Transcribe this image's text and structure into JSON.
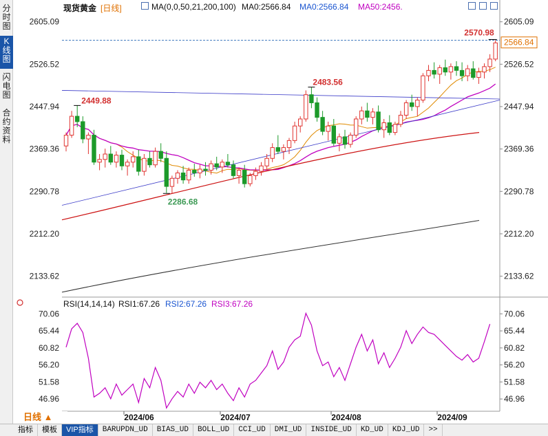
{
  "sidebar": {
    "tabs": [
      {
        "label": "分时图",
        "active": false
      },
      {
        "label": "K线图",
        "active": true
      },
      {
        "label": "闪电图",
        "active": false
      },
      {
        "label": "合约资料",
        "active": false
      }
    ]
  },
  "header": {
    "instrument": "现货黄金",
    "period_tag": "[日线]",
    "ma_params": "MA(0,0,50,21,200,100)",
    "ma0_a": "MA0:2566.84",
    "ma0_b": "MA0:2566.84",
    "ma50": "MA50:2456."
  },
  "price_panel": {
    "y_ticks": [
      "2605.09",
      "2526.52",
      "2447.94",
      "2369.36",
      "2290.78",
      "2212.20",
      "2133.62"
    ],
    "current_price": "2566.84",
    "annotations": {
      "high": "2570.98",
      "peak_july": "2483.56",
      "peak_may": "2449.88",
      "low_june": "2286.68"
    }
  },
  "rsi_panel": {
    "title": "RSI(14,14,14)",
    "rsi1": "RSI1:67.26",
    "rsi2": "RSI2:67.26",
    "rsi3": "RSI3:67.26",
    "y_ticks": [
      "70.06",
      "65.44",
      "60.82",
      "56.20",
      "51.58",
      "46.96"
    ]
  },
  "x_axis": {
    "labels": [
      "2024/06",
      "2024/07",
      "2024/08",
      "2024/09"
    ]
  },
  "period_button": {
    "label": "日线 ▲"
  },
  "bottom_tabs": [
    {
      "label": "指标",
      "active": false,
      "cn": true
    },
    {
      "label": "模板",
      "active": false,
      "cn": true
    },
    {
      "label": "VIP指标",
      "active": true,
      "cn": true
    },
    {
      "label": "BARUPDN_UD",
      "active": false
    },
    {
      "label": "BIAS_UD",
      "active": false
    },
    {
      "label": "BOLL_UD",
      "active": false
    },
    {
      "label": "CCI_UD",
      "active": false
    },
    {
      "label": "DMI_UD",
      "active": false
    },
    {
      "label": "INSIDE_UD",
      "active": false
    },
    {
      "label": "KD_UD",
      "active": false
    },
    {
      "label": "KDJ_UD",
      "active": false
    },
    {
      "label": ">>",
      "active": false
    }
  ],
  "colors": {
    "up": "#e0332f",
    "down": "#1c9a2a",
    "ma_fast": "#e08a00",
    "ma_mid": "#c000c0",
    "ma_slow": "#cc1010",
    "ma_long": "#303030",
    "trend_line": "#3a3ac8",
    "rsi": "#c000c0"
  },
  "chart_data": {
    "type": "candlestick",
    "price_range": [
      2100,
      2620
    ],
    "rsi_range": [
      44,
      72
    ],
    "candles": [
      [
        2375,
        2400,
        2365,
        2395
      ],
      [
        2395,
        2440,
        2390,
        2430
      ],
      [
        2430,
        2450,
        2410,
        2420
      ],
      [
        2420,
        2430,
        2380,
        2388
      ],
      [
        2388,
        2400,
        2360,
        2395
      ],
      [
        2395,
        2405,
        2340,
        2345
      ],
      [
        2345,
        2360,
        2330,
        2350
      ],
      [
        2350,
        2370,
        2335,
        2360
      ],
      [
        2360,
        2375,
        2340,
        2345
      ],
      [
        2345,
        2365,
        2335,
        2358
      ],
      [
        2358,
        2368,
        2330,
        2338
      ],
      [
        2338,
        2350,
        2320,
        2345
      ],
      [
        2345,
        2365,
        2335,
        2355
      ],
      [
        2355,
        2368,
        2320,
        2328
      ],
      [
        2328,
        2360,
        2320,
        2352
      ],
      [
        2352,
        2365,
        2335,
        2340
      ],
      [
        2340,
        2372,
        2335,
        2365
      ],
      [
        2365,
        2380,
        2345,
        2352
      ],
      [
        2352,
        2365,
        2288,
        2300
      ],
      [
        2300,
        2320,
        2287,
        2315
      ],
      [
        2315,
        2330,
        2305,
        2325
      ],
      [
        2325,
        2338,
        2305,
        2312
      ],
      [
        2312,
        2335,
        2305,
        2330
      ],
      [
        2330,
        2342,
        2318,
        2325
      ],
      [
        2325,
        2340,
        2315,
        2332
      ],
      [
        2332,
        2345,
        2320,
        2330
      ],
      [
        2330,
        2348,
        2322,
        2342
      ],
      [
        2342,
        2355,
        2330,
        2336
      ],
      [
        2336,
        2350,
        2325,
        2345
      ],
      [
        2345,
        2360,
        2335,
        2340
      ],
      [
        2340,
        2348,
        2315,
        2320
      ],
      [
        2320,
        2335,
        2305,
        2330
      ],
      [
        2330,
        2340,
        2298,
        2305
      ],
      [
        2305,
        2325,
        2300,
        2320
      ],
      [
        2320,
        2335,
        2312,
        2328
      ],
      [
        2328,
        2345,
        2320,
        2338
      ],
      [
        2338,
        2360,
        2330,
        2352
      ],
      [
        2352,
        2380,
        2345,
        2372
      ],
      [
        2372,
        2395,
        2360,
        2365
      ],
      [
        2365,
        2378,
        2350,
        2372
      ],
      [
        2372,
        2390,
        2360,
        2385
      ],
      [
        2385,
        2420,
        2380,
        2412
      ],
      [
        2412,
        2430,
        2400,
        2425
      ],
      [
        2425,
        2478,
        2420,
        2470
      ],
      [
        2470,
        2484,
        2445,
        2455
      ],
      [
        2455,
        2465,
        2420,
        2428
      ],
      [
        2428,
        2440,
        2395,
        2402
      ],
      [
        2402,
        2420,
        2385,
        2412
      ],
      [
        2412,
        2425,
        2375,
        2380
      ],
      [
        2380,
        2398,
        2365,
        2392
      ],
      [
        2392,
        2405,
        2370,
        2378
      ],
      [
        2378,
        2400,
        2372,
        2395
      ],
      [
        2395,
        2430,
        2390,
        2425
      ],
      [
        2425,
        2448,
        2415,
        2440
      ],
      [
        2440,
        2455,
        2420,
        2428
      ],
      [
        2428,
        2445,
        2415,
        2438
      ],
      [
        2438,
        2450,
        2400,
        2405
      ],
      [
        2405,
        2425,
        2390,
        2418
      ],
      [
        2418,
        2432,
        2395,
        2400
      ],
      [
        2400,
        2420,
        2395,
        2415
      ],
      [
        2415,
        2440,
        2410,
        2432
      ],
      [
        2432,
        2460,
        2425,
        2455
      ],
      [
        2455,
        2470,
        2440,
        2448
      ],
      [
        2448,
        2465,
        2430,
        2460
      ],
      [
        2460,
        2510,
        2455,
        2505
      ],
      [
        2505,
        2525,
        2495,
        2515
      ],
      [
        2515,
        2530,
        2500,
        2508
      ],
      [
        2508,
        2525,
        2490,
        2520
      ],
      [
        2520,
        2535,
        2505,
        2512
      ],
      [
        2512,
        2528,
        2498,
        2522
      ],
      [
        2522,
        2532,
        2505,
        2515
      ],
      [
        2515,
        2530,
        2495,
        2505
      ],
      [
        2505,
        2525,
        2495,
        2518
      ],
      [
        2518,
        2532,
        2498,
        2502
      ],
      [
        2502,
        2520,
        2490,
        2512
      ],
      [
        2512,
        2528,
        2500,
        2522
      ],
      [
        2522,
        2545,
        2512,
        2536
      ],
      [
        2536,
        2571,
        2532,
        2566
      ]
    ],
    "rsi": [
      61,
      66,
      67.5,
      65,
      58,
      47.5,
      48.5,
      50,
      47,
      51,
      48,
      49.5,
      51,
      46,
      52.5,
      50,
      55.5,
      52,
      44.5,
      47,
      49,
      47.5,
      51,
      48.5,
      51.5,
      50,
      52,
      49.5,
      51,
      48.5,
      46.5,
      50,
      47.5,
      51,
      52,
      54,
      56,
      60,
      55,
      57,
      61,
      63,
      64,
      70.2,
      67,
      60,
      56,
      57,
      53,
      55.5,
      52,
      56.5,
      61,
      64.5,
      60,
      63,
      56.5,
      59.5,
      55.5,
      58,
      61,
      65.5,
      62,
      64.5,
      66.5,
      65,
      64.5,
      63,
      61.5,
      60,
      58.5,
      57.5,
      59,
      57,
      58,
      62.5,
      67.3
    ]
  }
}
